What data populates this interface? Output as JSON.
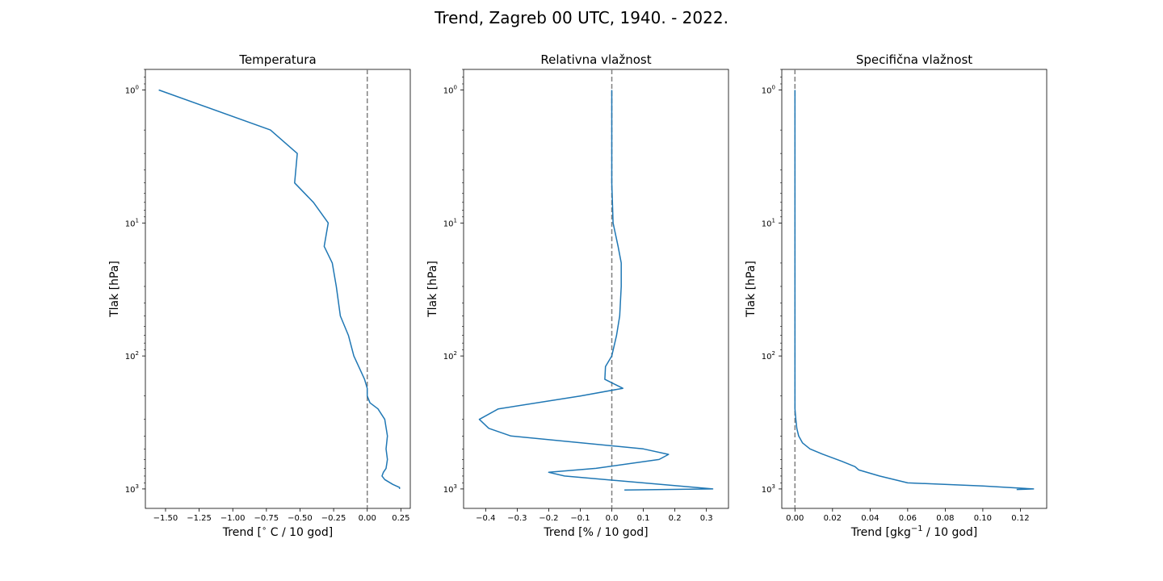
{
  "suptitle": "Trend, Zagreb 00 UTC, 1940. - 2022.",
  "chart_data": [
    {
      "type": "line",
      "title": "Temperatura",
      "xlabel": "Trend [$^{\\circ}$C / 10 god]",
      "xlabel_parts": {
        "pre": "Trend [",
        "sup": "∘",
        "post": " C / 10 god]"
      },
      "ylabel": "Tlak [hPa]",
      "xlim": [
        -1.65,
        0.32
      ],
      "ylim": [
        1400,
        0.7
      ],
      "yscale": "log",
      "y_inverted": true,
      "xticks": [
        -1.5,
        -1.25,
        -1.0,
        -0.75,
        -0.5,
        -0.25,
        0.0,
        0.25
      ],
      "xtick_labels": [
        "−1.50",
        "−1.25",
        "−1.00",
        "−0.75",
        "−0.50",
        "−0.25",
        "0.00",
        "0.25"
      ],
      "yticks": [
        1,
        10,
        100,
        1000
      ],
      "ytick_labels": [
        {
          "base": "10",
          "exp": "0"
        },
        {
          "base": "10",
          "exp": "1"
        },
        {
          "base": "10",
          "exp": "2"
        },
        {
          "base": "10",
          "exp": "3"
        }
      ],
      "zero_line": {
        "x": 0,
        "style": "dashed",
        "color": "#808080"
      },
      "line_color": "#1f77b4",
      "series": [
        {
          "x": [
            -1.55,
            -0.72,
            -0.52,
            -0.54,
            -0.4,
            -0.29,
            -0.32,
            -0.26,
            -0.23,
            -0.2,
            -0.14,
            -0.1,
            -0.02,
            0.0,
            0.0,
            0.0,
            0.02,
            0.08,
            0.13,
            0.15,
            0.14,
            0.15,
            0.14,
            0.12,
            0.11,
            0.13,
            0.19,
            0.24,
            0.24
          ],
          "y": [
            1,
            2,
            3,
            5,
            7,
            10,
            15,
            20,
            30,
            50,
            70,
            100,
            150,
            175,
            185,
            200,
            225,
            250,
            300,
            400,
            500,
            600,
            700,
            750,
            800,
            850,
            925,
            975,
            1000
          ]
        }
      ]
    },
    {
      "type": "line",
      "title": "Relativna vlažnost",
      "xlabel": "Trend [% / 10 god]",
      "ylabel": "Tlak [hPa]",
      "xlim": [
        -0.47,
        0.37
      ],
      "ylim": [
        1400,
        0.7
      ],
      "yscale": "log",
      "y_inverted": true,
      "xticks": [
        -0.4,
        -0.3,
        -0.2,
        -0.1,
        0.0,
        0.1,
        0.2,
        0.3
      ],
      "xtick_labels": [
        "−0.4",
        "−0.3",
        "−0.2",
        "−0.1",
        "0.0",
        "0.1",
        "0.2",
        "0.3"
      ],
      "yticks": [
        1,
        10,
        100,
        1000
      ],
      "ytick_labels": [
        {
          "base": "10",
          "exp": "0"
        },
        {
          "base": "10",
          "exp": "1"
        },
        {
          "base": "10",
          "exp": "2"
        },
        {
          "base": "10",
          "exp": "3"
        }
      ],
      "zero_line": {
        "x": 0,
        "style": "dashed",
        "color": "#808080"
      },
      "line_color": "#1f77b4",
      "series": [
        {
          "x": [
            0.0,
            0.0,
            0.0,
            0.0,
            0.002,
            0.004,
            0.02,
            0.03,
            0.03,
            0.025,
            0.015,
            0.0,
            -0.02,
            -0.022,
            0.035,
            -0.1,
            -0.36,
            -0.42,
            -0.39,
            -0.32,
            0.1,
            0.18,
            0.15,
            -0.05,
            -0.2,
            -0.15,
            0.32,
            0.04
          ],
          "y": [
            1,
            2,
            3,
            5,
            7,
            10,
            15,
            20,
            30,
            50,
            70,
            100,
            120,
            150,
            175,
            200,
            250,
            300,
            350,
            400,
            500,
            550,
            600,
            700,
            750,
            800,
            1000,
            1020
          ]
        }
      ]
    },
    {
      "type": "line",
      "title": "Specifična vlažnost",
      "xlabel": "Trend [gkg$^{-1}$ / 10 god]",
      "xlabel_parts": {
        "pre": "Trend [gkg",
        "sup": "−1",
        "post": " / 10 god]"
      },
      "ylabel": "Tlak [hPa]",
      "xlim": [
        -0.007,
        0.134
      ],
      "ylim": [
        1400,
        0.7
      ],
      "yscale": "log",
      "y_inverted": true,
      "xticks": [
        0.0,
        0.02,
        0.04,
        0.06,
        0.08,
        0.1,
        0.12
      ],
      "xtick_labels": [
        "0.00",
        "0.02",
        "0.04",
        "0.06",
        "0.08",
        "0.10",
        "0.12"
      ],
      "yticks": [
        1,
        10,
        100,
        1000
      ],
      "ytick_labels": [
        {
          "base": "10",
          "exp": "0"
        },
        {
          "base": "10",
          "exp": "1"
        },
        {
          "base": "10",
          "exp": "2"
        },
        {
          "base": "10",
          "exp": "3"
        }
      ],
      "zero_line": {
        "x": 0,
        "style": "dashed",
        "color": "#808080"
      },
      "line_color": "#1f77b4",
      "series": [
        {
          "x": [
            0.0,
            0.0,
            0.0,
            0.0,
            0.0,
            0.0,
            0.0,
            0.0005,
            0.001,
            0.002,
            0.004,
            0.008,
            0.015,
            0.025,
            0.032,
            0.034,
            0.045,
            0.06,
            0.1,
            0.127,
            0.118
          ],
          "y": [
            1,
            10,
            50,
            100,
            150,
            200,
            250,
            300,
            350,
            400,
            450,
            500,
            550,
            620,
            680,
            720,
            800,
            900,
            950,
            1000,
            1010
          ]
        }
      ]
    }
  ]
}
